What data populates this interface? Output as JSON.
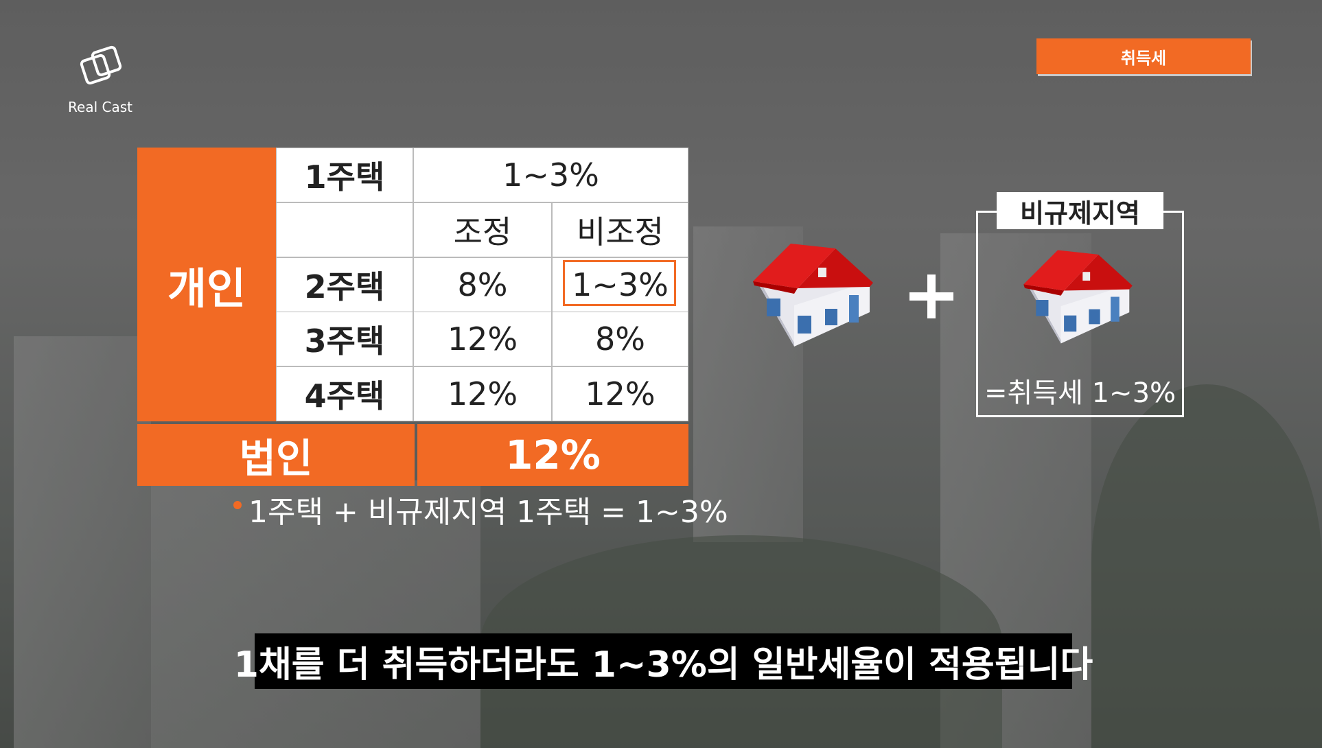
{
  "logo": {
    "text": "Real Cast"
  },
  "tag": "취득세",
  "table": {
    "individual_label": "개인",
    "first_home": {
      "label": "1주택",
      "rate": "1~3%"
    },
    "columns": [
      "조정",
      "비조정"
    ],
    "rows": [
      [
        "2주택",
        "8%",
        "1~3%"
      ],
      [
        "3주택",
        "12%",
        "8%"
      ],
      [
        "4주택",
        "12%",
        "12%"
      ]
    ],
    "corporate": {
      "label": "법인",
      "rate": "12%"
    }
  },
  "note": "1주택 + 비규제지역 1주택 = 1~3%",
  "illustration": {
    "box_label": "비규제지역",
    "result": "=취득세 1~3%"
  },
  "subtitle": "1채를 더 취득하더라도 1~3%의 일반세율이 적용됩니다"
}
